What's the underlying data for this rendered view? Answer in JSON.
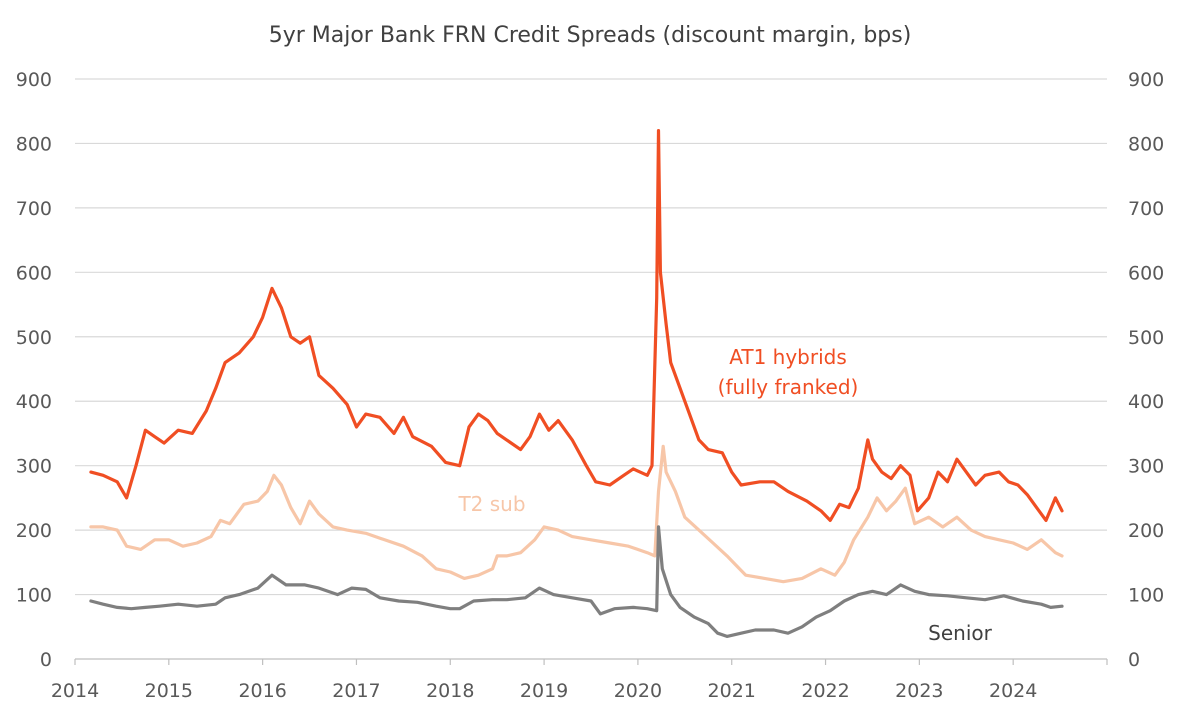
{
  "chart_data": {
    "type": "line",
    "title": "5yr Major Bank FRN Credit Spreads (discount margin, bps)",
    "xlabel": "",
    "ylabel": "",
    "xlim": [
      2014,
      2025
    ],
    "ylim": [
      0,
      900
    ],
    "y_ticks": [
      0,
      100,
      200,
      300,
      400,
      500,
      600,
      700,
      800,
      900
    ],
    "x_ticks": [
      "2014",
      "2015",
      "2016",
      "2017",
      "2018",
      "2019",
      "2020",
      "2021",
      "2022",
      "2023",
      "2024"
    ],
    "secondary_y_axis": true,
    "grid": "horizontal",
    "legend": "inline labels",
    "series": [
      {
        "name": "AT1 hybrids",
        "name_line2": "(fully franked)",
        "color": "#f04e23",
        "points": [
          [
            2014.17,
            290
          ],
          [
            2014.3,
            285
          ],
          [
            2014.45,
            275
          ],
          [
            2014.55,
            250
          ],
          [
            2014.65,
            300
          ],
          [
            2014.75,
            355
          ],
          [
            2014.85,
            345
          ],
          [
            2014.95,
            335
          ],
          [
            2015.1,
            355
          ],
          [
            2015.25,
            350
          ],
          [
            2015.4,
            385
          ],
          [
            2015.5,
            420
          ],
          [
            2015.6,
            460
          ],
          [
            2015.75,
            475
          ],
          [
            2015.9,
            500
          ],
          [
            2016.0,
            530
          ],
          [
            2016.1,
            575
          ],
          [
            2016.2,
            545
          ],
          [
            2016.3,
            500
          ],
          [
            2016.4,
            490
          ],
          [
            2016.5,
            500
          ],
          [
            2016.6,
            440
          ],
          [
            2016.75,
            420
          ],
          [
            2016.9,
            395
          ],
          [
            2017.0,
            360
          ],
          [
            2017.1,
            380
          ],
          [
            2017.25,
            375
          ],
          [
            2017.4,
            350
          ],
          [
            2017.5,
            375
          ],
          [
            2017.6,
            345
          ],
          [
            2017.8,
            330
          ],
          [
            2017.95,
            305
          ],
          [
            2018.1,
            300
          ],
          [
            2018.2,
            360
          ],
          [
            2018.3,
            380
          ],
          [
            2018.4,
            370
          ],
          [
            2018.5,
            350
          ],
          [
            2018.6,
            340
          ],
          [
            2018.75,
            325
          ],
          [
            2018.85,
            345
          ],
          [
            2018.95,
            380
          ],
          [
            2019.05,
            355
          ],
          [
            2019.15,
            370
          ],
          [
            2019.3,
            340
          ],
          [
            2019.45,
            300
          ],
          [
            2019.55,
            275
          ],
          [
            2019.7,
            270
          ],
          [
            2019.85,
            285
          ],
          [
            2019.95,
            295
          ],
          [
            2020.1,
            285
          ],
          [
            2020.15,
            300
          ],
          [
            2020.2,
            560
          ],
          [
            2020.22,
            820
          ],
          [
            2020.24,
            600
          ],
          [
            2020.3,
            520
          ],
          [
            2020.35,
            460
          ],
          [
            2020.45,
            420
          ],
          [
            2020.55,
            380
          ],
          [
            2020.65,
            340
          ],
          [
            2020.75,
            325
          ],
          [
            2020.9,
            320
          ],
          [
            2021.0,
            290
          ],
          [
            2021.1,
            270
          ],
          [
            2021.3,
            275
          ],
          [
            2021.45,
            275
          ],
          [
            2021.6,
            260
          ],
          [
            2021.8,
            245
          ],
          [
            2021.95,
            230
          ],
          [
            2022.05,
            215
          ],
          [
            2022.15,
            240
          ],
          [
            2022.25,
            235
          ],
          [
            2022.35,
            265
          ],
          [
            2022.45,
            340
          ],
          [
            2022.5,
            310
          ],
          [
            2022.6,
            290
          ],
          [
            2022.7,
            280
          ],
          [
            2022.8,
            300
          ],
          [
            2022.9,
            285
          ],
          [
            2022.98,
            230
          ],
          [
            2023.1,
            250
          ],
          [
            2023.2,
            290
          ],
          [
            2023.3,
            275
          ],
          [
            2023.4,
            310
          ],
          [
            2023.5,
            290
          ],
          [
            2023.6,
            270
          ],
          [
            2023.7,
            285
          ],
          [
            2023.85,
            290
          ],
          [
            2023.95,
            275
          ],
          [
            2024.05,
            270
          ],
          [
            2024.15,
            255
          ],
          [
            2024.25,
            235
          ],
          [
            2024.35,
            215
          ],
          [
            2024.45,
            250
          ],
          [
            2024.52,
            230
          ]
        ]
      },
      {
        "name": "T2 sub",
        "color": "#f7c6a8",
        "points": [
          [
            2014.17,
            205
          ],
          [
            2014.3,
            205
          ],
          [
            2014.45,
            200
          ],
          [
            2014.55,
            175
          ],
          [
            2014.7,
            170
          ],
          [
            2014.85,
            185
          ],
          [
            2015.0,
            185
          ],
          [
            2015.15,
            175
          ],
          [
            2015.3,
            180
          ],
          [
            2015.45,
            190
          ],
          [
            2015.55,
            215
          ],
          [
            2015.65,
            210
          ],
          [
            2015.8,
            240
          ],
          [
            2015.95,
            245
          ],
          [
            2016.05,
            260
          ],
          [
            2016.12,
            285
          ],
          [
            2016.2,
            270
          ],
          [
            2016.3,
            235
          ],
          [
            2016.4,
            210
          ],
          [
            2016.5,
            245
          ],
          [
            2016.6,
            225
          ],
          [
            2016.75,
            205
          ],
          [
            2016.9,
            200
          ],
          [
            2017.1,
            195
          ],
          [
            2017.3,
            185
          ],
          [
            2017.5,
            175
          ],
          [
            2017.7,
            160
          ],
          [
            2017.85,
            140
          ],
          [
            2018.0,
            135
          ],
          [
            2018.15,
            125
          ],
          [
            2018.3,
            130
          ],
          [
            2018.45,
            140
          ],
          [
            2018.5,
            160
          ],
          [
            2018.6,
            160
          ],
          [
            2018.75,
            165
          ],
          [
            2018.9,
            185
          ],
          [
            2019.0,
            205
          ],
          [
            2019.15,
            200
          ],
          [
            2019.3,
            190
          ],
          [
            2019.5,
            185
          ],
          [
            2019.7,
            180
          ],
          [
            2019.9,
            175
          ],
          [
            2020.1,
            165
          ],
          [
            2020.18,
            160
          ],
          [
            2020.22,
            260
          ],
          [
            2020.27,
            330
          ],
          [
            2020.3,
            290
          ],
          [
            2020.4,
            260
          ],
          [
            2020.5,
            220
          ],
          [
            2020.65,
            200
          ],
          [
            2020.8,
            180
          ],
          [
            2020.95,
            160
          ],
          [
            2021.05,
            145
          ],
          [
            2021.15,
            130
          ],
          [
            2021.35,
            125
          ],
          [
            2021.55,
            120
          ],
          [
            2021.75,
            125
          ],
          [
            2021.95,
            140
          ],
          [
            2022.1,
            130
          ],
          [
            2022.2,
            150
          ],
          [
            2022.3,
            185
          ],
          [
            2022.45,
            220
          ],
          [
            2022.55,
            250
          ],
          [
            2022.65,
            230
          ],
          [
            2022.75,
            245
          ],
          [
            2022.85,
            265
          ],
          [
            2022.95,
            210
          ],
          [
            2023.1,
            220
          ],
          [
            2023.25,
            205
          ],
          [
            2023.4,
            220
          ],
          [
            2023.55,
            200
          ],
          [
            2023.7,
            190
          ],
          [
            2023.85,
            185
          ],
          [
            2024.0,
            180
          ],
          [
            2024.15,
            170
          ],
          [
            2024.3,
            185
          ],
          [
            2024.45,
            165
          ],
          [
            2024.52,
            160
          ]
        ]
      },
      {
        "name": "Senior",
        "color": "#7f7f7f",
        "points": [
          [
            2014.17,
            90
          ],
          [
            2014.3,
            85
          ],
          [
            2014.45,
            80
          ],
          [
            2014.6,
            78
          ],
          [
            2014.75,
            80
          ],
          [
            2014.9,
            82
          ],
          [
            2015.1,
            85
          ],
          [
            2015.3,
            82
          ],
          [
            2015.5,
            85
          ],
          [
            2015.6,
            95
          ],
          [
            2015.75,
            100
          ],
          [
            2015.95,
            110
          ],
          [
            2016.1,
            130
          ],
          [
            2016.25,
            115
          ],
          [
            2016.45,
            115
          ],
          [
            2016.6,
            110
          ],
          [
            2016.8,
            100
          ],
          [
            2016.95,
            110
          ],
          [
            2017.1,
            108
          ],
          [
            2017.25,
            95
          ],
          [
            2017.45,
            90
          ],
          [
            2017.65,
            88
          ],
          [
            2017.85,
            82
          ],
          [
            2018.0,
            78
          ],
          [
            2018.1,
            78
          ],
          [
            2018.25,
            90
          ],
          [
            2018.45,
            92
          ],
          [
            2018.6,
            92
          ],
          [
            2018.8,
            95
          ],
          [
            2018.95,
            110
          ],
          [
            2019.1,
            100
          ],
          [
            2019.3,
            95
          ],
          [
            2019.5,
            90
          ],
          [
            2019.6,
            70
          ],
          [
            2019.75,
            78
          ],
          [
            2019.95,
            80
          ],
          [
            2020.1,
            78
          ],
          [
            2020.2,
            75
          ],
          [
            2020.22,
            205
          ],
          [
            2020.26,
            140
          ],
          [
            2020.35,
            100
          ],
          [
            2020.45,
            80
          ],
          [
            2020.6,
            65
          ],
          [
            2020.75,
            55
          ],
          [
            2020.85,
            40
          ],
          [
            2020.95,
            35
          ],
          [
            2021.1,
            40
          ],
          [
            2021.25,
            45
          ],
          [
            2021.45,
            45
          ],
          [
            2021.6,
            40
          ],
          [
            2021.75,
            50
          ],
          [
            2021.9,
            65
          ],
          [
            2022.05,
            75
          ],
          [
            2022.2,
            90
          ],
          [
            2022.35,
            100
          ],
          [
            2022.5,
            105
          ],
          [
            2022.65,
            100
          ],
          [
            2022.8,
            115
          ],
          [
            2022.95,
            105
          ],
          [
            2023.1,
            100
          ],
          [
            2023.3,
            98
          ],
          [
            2023.5,
            95
          ],
          [
            2023.7,
            92
          ],
          [
            2023.9,
            98
          ],
          [
            2024.1,
            90
          ],
          [
            2024.3,
            85
          ],
          [
            2024.4,
            80
          ],
          [
            2024.52,
            82
          ]
        ]
      }
    ]
  }
}
